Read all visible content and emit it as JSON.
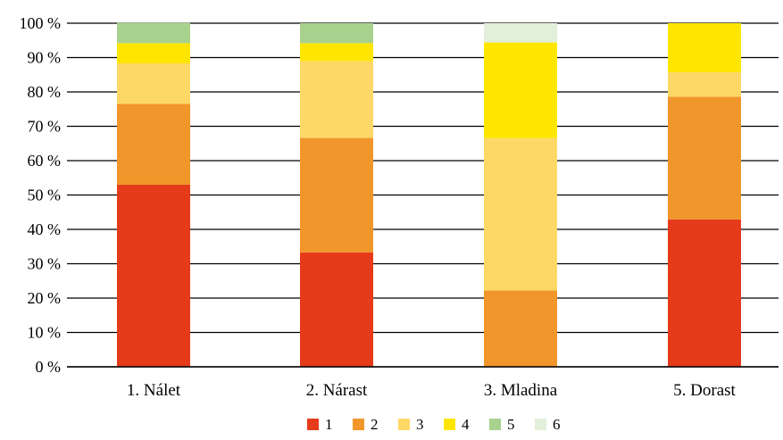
{
  "chart_data": {
    "type": "bar",
    "stacked": true,
    "percent": true,
    "categories": [
      "1. Nálet",
      "2. Nárast",
      "3. Mladina",
      "5. Dorast"
    ],
    "series": [
      {
        "name": "1",
        "color": "#e53b1a",
        "values": [
          53,
          33.3,
          0,
          42.9
        ]
      },
      {
        "name": "2",
        "color": "#f1962a",
        "values": [
          23.5,
          33.3,
          22.2,
          35.7
        ]
      },
      {
        "name": "3",
        "color": "#fed866",
        "values": [
          11.8,
          22.4,
          44.4,
          7.1
        ]
      },
      {
        "name": "4",
        "color": "#ffe600",
        "values": [
          5.9,
          5.2,
          27.8,
          14.3
        ]
      },
      {
        "name": "5",
        "color": "#a9d18e",
        "values": [
          5.9,
          5.8,
          0,
          0
        ]
      },
      {
        "name": "6",
        "color": "#e2efda",
        "values": [
          0,
          0,
          5.6,
          0
        ]
      }
    ],
    "ylim": [
      0,
      100
    ],
    "yticks": [
      "0 %",
      "10 %",
      "20 %",
      "30 %",
      "40 %",
      "50 %",
      "60 %",
      "70 %",
      "80 %",
      "90 %",
      "100 %"
    ],
    "grid": true,
    "legend": "bottom"
  }
}
